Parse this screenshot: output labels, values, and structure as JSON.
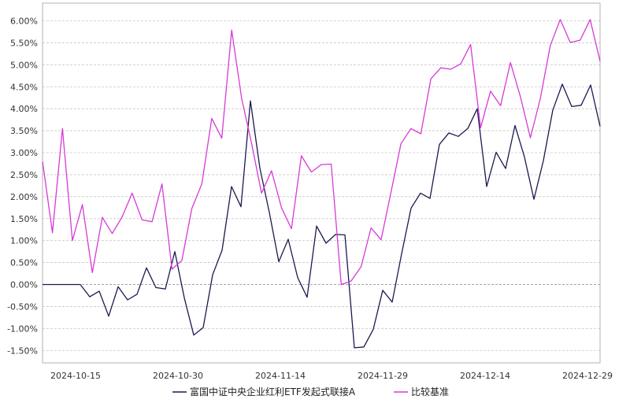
{
  "chart_data": {
    "type": "line",
    "title": "",
    "xlabel": "",
    "ylabel": "",
    "ylim": [
      -1.5,
      6.0
    ],
    "y_unit": "%",
    "y_ticks": [
      "6.00%",
      "5.50%",
      "5.00%",
      "4.50%",
      "4.00%",
      "3.50%",
      "3.00%",
      "2.50%",
      "2.00%",
      "1.50%",
      "1.00%",
      "0.50%",
      "0.00%",
      "-0.50%",
      "-1.00%",
      "-1.50%"
    ],
    "x_ticks": [
      "2024-10-15",
      "2024-10-30",
      "2024-11-14",
      "2024-11-29",
      "2024-12-14",
      "2024-12-29"
    ],
    "grid": true,
    "legend_position": "bottom",
    "series": [
      {
        "name": "富国中证中央企业红利ETF发起式联接A",
        "color": "#1a1a4e",
        "values": [
          0.0,
          0.0,
          0.0,
          0.0,
          0.0,
          -0.28,
          -0.15,
          -0.72,
          -0.05,
          -0.35,
          -0.22,
          0.38,
          -0.07,
          -0.1,
          0.75,
          -0.3,
          -1.15,
          -0.98,
          0.22,
          0.78,
          2.23,
          1.77,
          4.18,
          2.65,
          1.64,
          0.52,
          1.03,
          0.16,
          -0.29,
          1.33,
          0.94,
          1.14,
          1.13,
          -1.44,
          -1.42,
          -1.02,
          -0.13,
          -0.4,
          0.7,
          1.74,
          2.08,
          1.96,
          3.19,
          3.45,
          3.37,
          3.55,
          4.0,
          2.23,
          3.01,
          2.64,
          3.62,
          2.9,
          1.94,
          2.82,
          3.97,
          4.56,
          4.05,
          4.08,
          4.54,
          3.6
        ]
      },
      {
        "name": "比较基准",
        "color": "#d63ad6",
        "values": [
          2.8,
          1.18,
          3.55,
          1.0,
          1.82,
          0.27,
          1.53,
          1.16,
          1.54,
          2.08,
          1.47,
          1.43,
          2.29,
          0.35,
          0.55,
          1.73,
          2.29,
          3.78,
          3.33,
          5.79,
          4.23,
          3.21,
          2.08,
          2.59,
          1.75,
          1.27,
          2.93,
          2.56,
          2.73,
          2.74,
          0.0,
          0.08,
          0.41,
          1.29,
          1.02,
          2.1,
          3.2,
          3.55,
          3.43,
          4.68,
          4.93,
          4.9,
          5.02,
          5.46,
          3.57,
          4.4,
          4.07,
          5.05,
          4.27,
          3.34,
          4.23,
          5.44,
          6.03,
          5.51,
          5.56,
          6.03,
          5.08
        ]
      }
    ]
  }
}
